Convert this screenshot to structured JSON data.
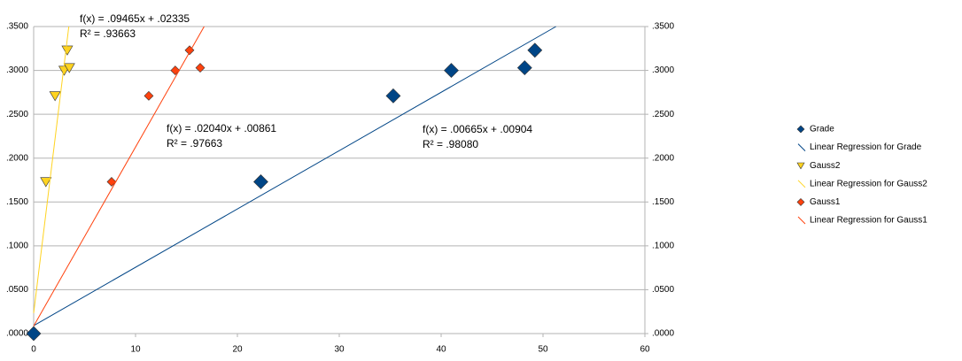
{
  "chart_data": {
    "type": "scatter",
    "xlim": [
      0,
      60
    ],
    "xticks": [
      0,
      10,
      20,
      30,
      40,
      50,
      60
    ],
    "ylim": [
      0,
      0.35
    ],
    "yticks": [
      {
        "value": 0,
        "label": ".0000"
      },
      {
        "value": 0.05,
        "label": ".0500"
      },
      {
        "value": 0.1,
        "label": ".1000"
      },
      {
        "value": 0.15,
        "label": ".1500"
      },
      {
        "value": 0.2,
        "label": ".2000"
      },
      {
        "value": 0.25,
        "label": ".2500"
      },
      {
        "value": 0.3,
        "label": ".3000"
      },
      {
        "value": 0.35,
        "label": ".3500"
      }
    ],
    "y2lim": [
      0,
      0.35
    ],
    "y2ticks": [
      {
        "value": 0,
        "label": ".0000"
      },
      {
        "value": 0.05,
        "label": ".0500"
      },
      {
        "value": 0.1,
        "label": ".1000"
      },
      {
        "value": 0.15,
        "label": ".1500"
      },
      {
        "value": 0.2,
        "label": ".2000"
      },
      {
        "value": 0.25,
        "label": ".2500"
      },
      {
        "value": 0.3,
        "label": ".3000"
      },
      {
        "value": 0.35,
        "label": ".3500"
      }
    ],
    "grid": true,
    "legend": "right",
    "series": [
      {
        "name": "Grade",
        "color": "#004586",
        "marker": "diamond",
        "x": [
          0,
          22.3,
          35.3,
          41.0,
          48.2,
          49.2
        ],
        "values": [
          0,
          0.173,
          0.271,
          0.3,
          0.303,
          0.323
        ]
      },
      {
        "name": "Linear Regression for Grade",
        "color": "#004586",
        "marker": "line",
        "slope": 0.00665,
        "intercept": 0.00904,
        "equation": "f(x) = .00665x + .00904",
        "r_squared": "R² = .98080"
      },
      {
        "name": "Gauss2",
        "color": "#ffd320",
        "marker": "triangle",
        "x": [
          1.2,
          2.1,
          3.0,
          3.5,
          3.3
        ],
        "values": [
          0.173,
          0.271,
          0.3,
          0.303,
          0.323
        ]
      },
      {
        "name": "Linear Regression for Gauss2",
        "color": "#ffd320",
        "marker": "line",
        "slope": 0.09465,
        "intercept": 0.02335,
        "equation": "f(x) = .09465x + .02335",
        "r_squared": "R² = .93663"
      },
      {
        "name": "Gauss1",
        "color": "#ff420e",
        "marker": "diamond",
        "x": [
          7.65,
          11.3,
          13.9,
          16.35,
          15.3
        ],
        "values": [
          0.173,
          0.271,
          0.3,
          0.303,
          0.323
        ]
      },
      {
        "name": "Linear Regression for Gauss1",
        "color": "#ff420e",
        "marker": "line",
        "slope": 0.0204,
        "intercept": 0.00861,
        "equation": "f(x) = .02040x + .00861",
        "r_squared": "R² = .97663"
      }
    ]
  }
}
